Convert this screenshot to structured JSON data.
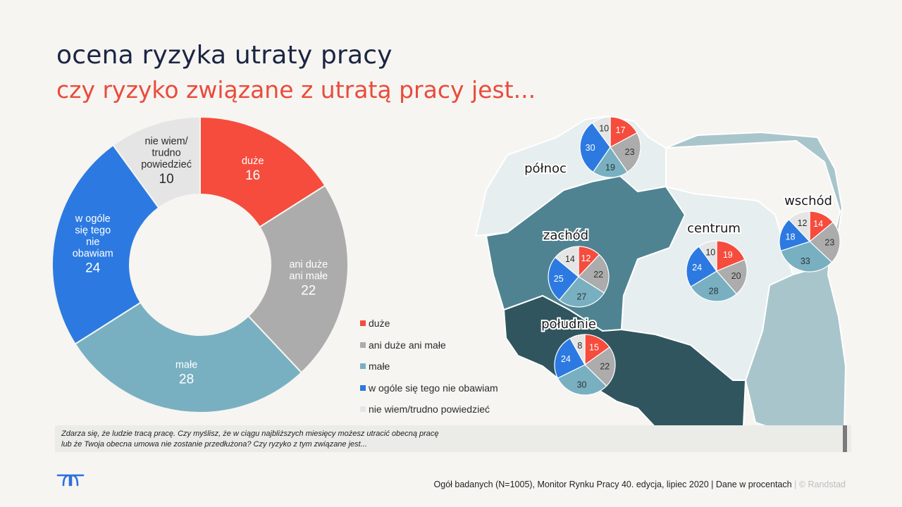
{
  "header": {
    "title": "ocena ryzyka utraty pracy",
    "subtitle": "czy ryzyko związane z utratą pracy jest..."
  },
  "colors": {
    "duze": "#f54c3d",
    "ani": "#acacac",
    "male": "#78b0c1",
    "wogole": "#2c7ae1",
    "niewiem": "#e5e5e5",
    "map_north": "#e7eef0",
    "map_east": "#a9c5cc",
    "map_west": "#4f8391",
    "map_south": "#30555f",
    "map_center": "#e7eef0"
  },
  "chart_data": [
    {
      "type": "pie",
      "variant": "donut",
      "categories": [
        "duże",
        "ani duże ani małe",
        "małe",
        "w ogóle się tego nie obawiam",
        "nie wiem/trudno powiedzieć"
      ],
      "values": [
        16,
        22,
        28,
        24,
        10
      ],
      "slice_labels": [
        [
          "duże"
        ],
        [
          "ani duże",
          "ani małe"
        ],
        [
          "małe"
        ],
        [
          "w ogóle",
          "się tego",
          "nie",
          "obawiam"
        ],
        [
          "nie wiem/",
          "trudno",
          "powiedzieć"
        ]
      ],
      "legend_position": "right"
    },
    {
      "type": "pie",
      "region": "północ",
      "values": [
        17,
        23,
        19,
        30,
        10
      ]
    },
    {
      "type": "pie",
      "region": "zachód",
      "values": [
        12,
        22,
        27,
        25,
        14
      ]
    },
    {
      "type": "pie",
      "region": "centrum",
      "values": [
        19,
        20,
        28,
        24,
        10
      ]
    },
    {
      "type": "pie",
      "region": "wschód",
      "values": [
        14,
        23,
        33,
        18,
        12
      ]
    },
    {
      "type": "pie",
      "region": "południe",
      "values": [
        15,
        22,
        30,
        24,
        8
      ]
    }
  ],
  "legend": [
    {
      "label": "duże",
      "color": "#f54c3d"
    },
    {
      "label": "ani duże ani małe",
      "color": "#acacac"
    },
    {
      "label": "małe",
      "color": "#78b0c1"
    },
    {
      "label": "w ogóle się tego nie obawiam",
      "color": "#2c7ae1"
    },
    {
      "label": "nie wiem/trudno powiedzieć",
      "color": "#e5e5e5"
    }
  ],
  "note": {
    "line1": "Zdarza się, że ludzie tracą pracę. Czy myślisz, że w ciągu najbliższych miesięcy możesz utracić obecną pracę",
    "line2": "lub że Twoja obecna umowa nie zostanie przedłużona? Czy ryzyko z tym związane jest..."
  },
  "footer": {
    "source": "Ogół badanych (N=1005), Monitor Rynku Pracy 40. edycja, lipiec 2020 | Dane w procentach",
    "separator": "|",
    "copyright": "© Randstad"
  },
  "logo": {
    "icon": "randstad-logo-icon"
  }
}
